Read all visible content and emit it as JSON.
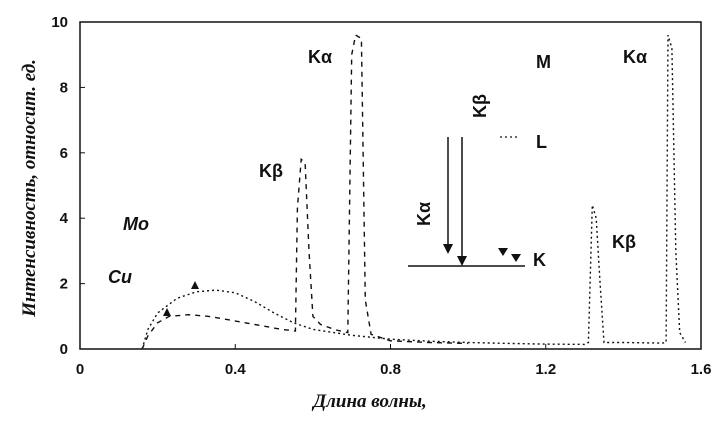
{
  "chart_data": {
    "type": "line",
    "xlabel": "Длина волны,",
    "ylabel": "Интенсивность, относит. ед.",
    "xlim": [
      0,
      1.6
    ],
    "ylim": [
      0,
      10
    ],
    "x_ticks": [
      "0",
      "0.4",
      "0.8",
      "1.2",
      "1.6"
    ],
    "y_ticks": [
      "0",
      "2",
      "4",
      "6",
      "8",
      "10"
    ],
    "grid": false,
    "series": [
      {
        "name": "Cu",
        "points": [
          [
            0.16,
            0
          ],
          [
            0.175,
            0.6
          ],
          [
            0.2,
            1.1
          ],
          [
            0.25,
            1.55
          ],
          [
            0.3,
            1.75
          ],
          [
            0.35,
            1.8
          ],
          [
            0.4,
            1.72
          ],
          [
            0.45,
            1.45
          ],
          [
            0.5,
            1.1
          ],
          [
            0.55,
            0.8
          ],
          [
            0.6,
            0.6
          ],
          [
            0.7,
            0.42
          ],
          [
            0.8,
            0.3
          ],
          [
            0.9,
            0.24
          ],
          [
            1.0,
            0.2
          ],
          [
            1.1,
            0.17
          ],
          [
            1.2,
            0.15
          ],
          [
            1.3,
            0.14
          ],
          [
            1.31,
            0.2
          ],
          [
            1.32,
            4.4
          ],
          [
            1.33,
            4.0
          ],
          [
            1.34,
            2.0
          ],
          [
            1.35,
            0.2
          ],
          [
            1.4,
            0.2
          ],
          [
            1.5,
            0.18
          ],
          [
            1.51,
            0.2
          ],
          [
            1.515,
            9.6
          ],
          [
            1.525,
            9.2
          ],
          [
            1.535,
            3.0
          ],
          [
            1.545,
            0.5
          ],
          [
            1.56,
            0.2
          ]
        ]
      },
      {
        "name": "Mo",
        "points": [
          [
            0.16,
            0
          ],
          [
            0.175,
            0.4
          ],
          [
            0.2,
            0.8
          ],
          [
            0.23,
            1.0
          ],
          [
            0.28,
            1.05
          ],
          [
            0.33,
            1.0
          ],
          [
            0.38,
            0.9
          ],
          [
            0.45,
            0.75
          ],
          [
            0.52,
            0.6
          ],
          [
            0.555,
            0.55
          ],
          [
            0.56,
            4.3
          ],
          [
            0.57,
            5.8
          ],
          [
            0.58,
            5.7
          ],
          [
            0.59,
            3.0
          ],
          [
            0.6,
            1.0
          ],
          [
            0.62,
            0.75
          ],
          [
            0.66,
            0.58
          ],
          [
            0.69,
            0.5
          ],
          [
            0.7,
            9.0
          ],
          [
            0.71,
            9.6
          ],
          [
            0.725,
            9.5
          ],
          [
            0.735,
            1.5
          ],
          [
            0.75,
            0.45
          ],
          [
            0.8,
            0.25
          ],
          [
            0.9,
            0.2
          ],
          [
            1.0,
            0.17
          ]
        ]
      }
    ],
    "series_labels": {
      "mo": "Mo",
      "cu": "Cu"
    },
    "peak_labels": {
      "mo_kbeta": "Kβ",
      "mo_kalpha": "Kα",
      "cu_kbeta": "Kβ",
      "cu_kalpha": "Kα"
    },
    "diagram_labels": {
      "m": "M",
      "l": "L",
      "k": "K",
      "kalpha": "Kα",
      "kbeta": "Kβ"
    }
  }
}
